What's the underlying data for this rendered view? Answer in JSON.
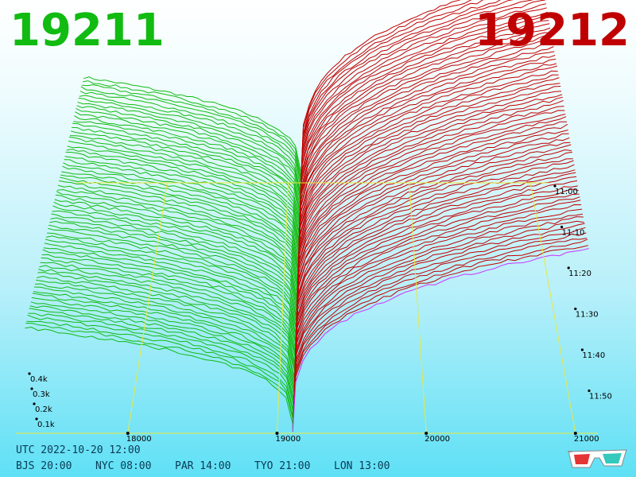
{
  "labels": {
    "left": "19211",
    "right": "19212"
  },
  "colors": {
    "left": "#11bb11",
    "right": "#c00000",
    "grid": "#e8e840",
    "depth": "#800000",
    "accent": "#cc33ff"
  },
  "chart_data": {
    "type": "3d-waterfall-line",
    "x_ticks": [
      "18000",
      "19000",
      "20000",
      "21000"
    ],
    "x_tick_values": [
      18000,
      19000,
      20000,
      21000
    ],
    "x_range": [
      17250,
      21150
    ],
    "depth_ticks": [
      "0.1k",
      "0.2k",
      "0.3k",
      "0.4k"
    ],
    "time_ticks": [
      "11:00",
      "11:10",
      "11:20",
      "11:30",
      "11:40",
      "11:50"
    ],
    "series": [
      {
        "name": "19211",
        "color": "#11bb11"
      },
      {
        "name": "19212",
        "color": "#c00000"
      }
    ],
    "sweep_count": 70
  },
  "footer": {
    "utc": "UTC 2022-10-20 12:00",
    "zones": [
      "BJS 20:00",
      "NYC 08:00",
      "PAR 14:00",
      "TYO 21:00",
      "LON 13:00"
    ]
  },
  "icon": "3d-glasses-icon"
}
